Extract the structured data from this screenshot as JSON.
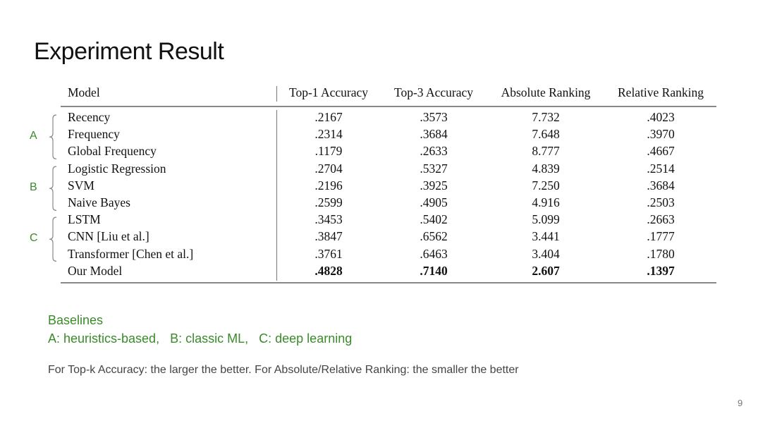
{
  "slide": {
    "title": "Experiment Result",
    "page_number": "9",
    "accent_color": "#3a8a2a"
  },
  "table": {
    "headers": [
      "Model",
      "Top-1 Accuracy",
      "Top-3 Accuracy",
      "Absolute Ranking",
      "Relative Ranking"
    ],
    "groups": [
      {
        "label": "A",
        "rows": [
          0,
          2
        ]
      },
      {
        "label": "B",
        "rows": [
          3,
          5
        ]
      },
      {
        "label": "C",
        "rows": [
          6,
          8
        ]
      }
    ],
    "rows": [
      {
        "model": "Recency",
        "top1": ".2167",
        "top3": ".3573",
        "abs": "7.732",
        "rel": ".4023"
      },
      {
        "model": "Frequency",
        "top1": ".2314",
        "top3": ".3684",
        "abs": "7.648",
        "rel": ".3970"
      },
      {
        "model": "Global Frequency",
        "top1": ".1179",
        "top3": ".2633",
        "abs": "8.777",
        "rel": ".4667"
      },
      {
        "model": "Logistic Regression",
        "top1": ".2704",
        "top3": ".5327",
        "abs": "4.839",
        "rel": ".2514"
      },
      {
        "model": "SVM",
        "top1": ".2196",
        "top3": ".3925",
        "abs": "7.250",
        "rel": ".3684"
      },
      {
        "model": "Naive Bayes",
        "top1": ".2599",
        "top3": ".4905",
        "abs": "4.916",
        "rel": ".2503"
      },
      {
        "model": "LSTM",
        "top1": ".3453",
        "top3": ".5402",
        "abs": "5.099",
        "rel": ".2663"
      },
      {
        "model": "CNN [Liu et al.]",
        "top1": ".3847",
        "top3": ".6562",
        "abs": "3.441",
        "rel": ".1777"
      },
      {
        "model": "Transformer [Chen et al.]",
        "top1": ".3761",
        "top3": ".6463",
        "abs": "3.404",
        "rel": ".1780"
      },
      {
        "model": "Our Model",
        "top1": ".4828",
        "top3": ".7140",
        "abs": "2.607",
        "rel": ".1397",
        "bold": true
      }
    ]
  },
  "legend": {
    "heading": "Baselines",
    "items": [
      "A: heuristics-based,",
      "B: classic ML,",
      "C: deep learning"
    ]
  },
  "note": "For Top-k Accuracy: the larger the better. For Absolute/Relative Ranking: the smaller the better"
}
